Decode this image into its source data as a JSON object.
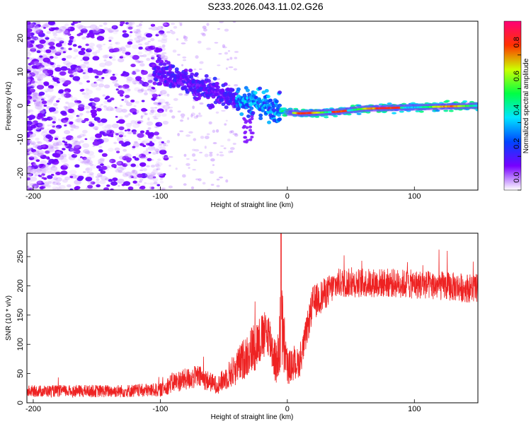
{
  "title": "S233.2026.043.11.02.G26",
  "charts": [
    {
      "type": "heatmap",
      "name": "spectrogram",
      "xlabel": "Height of straight line (km)",
      "ylabel": "Frequency (Hz)",
      "xlim": [
        -205,
        150
      ],
      "ylim": [
        -25,
        25
      ],
      "xticks": [
        -200,
        -100,
        0,
        100
      ],
      "yticks": [
        -20,
        -10,
        0,
        10,
        20
      ],
      "track": [
        {
          "x": -100,
          "y": 10
        },
        {
          "x": -80,
          "y": 7
        },
        {
          "x": -60,
          "y": 4
        },
        {
          "x": -40,
          "y": 2
        },
        {
          "x": -25,
          "y": 1
        },
        {
          "x": -10,
          "y": -1
        },
        {
          "x": 0,
          "y": -2
        },
        {
          "x": 10,
          "y": -2.3
        },
        {
          "x": 40,
          "y": -1.8
        },
        {
          "x": 60,
          "y": -0.9
        },
        {
          "x": 100,
          "y": -0.5
        },
        {
          "x": 150,
          "y": 0
        }
      ],
      "colorbar": {
        "label": "Normalized spectral amplitude",
        "ticks": [
          "0.0",
          "0.2",
          "0.4",
          "0.6",
          "0.8"
        ],
        "range": [
          0,
          1
        ],
        "colors": [
          "#ffffff",
          "#7700ff",
          "#0044ff",
          "#00e5ff",
          "#00ff44",
          "#ccff00",
          "#ff3300",
          "#ff0077"
        ]
      }
    },
    {
      "type": "line",
      "name": "snr",
      "xlabel": "Height of straight line (km)",
      "ylabel": "SNR (10 * v/v)",
      "xlim": [
        -205,
        150
      ],
      "ylim": [
        0,
        290
      ],
      "xticks": [
        -200,
        -100,
        0,
        100
      ],
      "yticks": [
        0,
        50,
        100,
        150,
        200,
        250
      ],
      "color": "#ee2222",
      "envelope": [
        {
          "x": -205,
          "mean": 20,
          "spread": 10
        },
        {
          "x": -130,
          "mean": 20,
          "spread": 11
        },
        {
          "x": -100,
          "mean": 22,
          "spread": 12
        },
        {
          "x": -90,
          "mean": 35,
          "spread": 18
        },
        {
          "x": -70,
          "mean": 45,
          "spread": 20
        },
        {
          "x": -55,
          "mean": 30,
          "spread": 15
        },
        {
          "x": -40,
          "mean": 60,
          "spread": 30
        },
        {
          "x": -25,
          "mean": 100,
          "spread": 45
        },
        {
          "x": -15,
          "mean": 120,
          "spread": 40
        },
        {
          "x": -8,
          "mean": 60,
          "spread": 40
        },
        {
          "x": -5,
          "mean": 140,
          "spread": 90
        },
        {
          "x": 0,
          "mean": 60,
          "spread": 30
        },
        {
          "x": 10,
          "mean": 70,
          "spread": 25
        },
        {
          "x": 20,
          "mean": 170,
          "spread": 30
        },
        {
          "x": 40,
          "mean": 205,
          "spread": 25
        },
        {
          "x": 80,
          "mean": 205,
          "spread": 25
        },
        {
          "x": 120,
          "mean": 200,
          "spread": 25
        },
        {
          "x": 150,
          "mean": 195,
          "spread": 25
        }
      ],
      "peak": {
        "x": -5,
        "y": 290
      }
    }
  ]
}
